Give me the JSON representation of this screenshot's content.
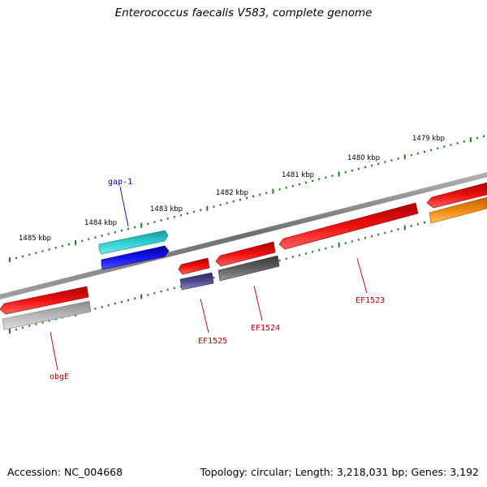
{
  "title": "Enterococcus faecalis V583, complete genome",
  "footer": {
    "accession": "Accession: NC_004668",
    "summary": "Topology: circular; Length: 3,218,031 bp; Genes: 3,192"
  },
  "scale": {
    "tick_labels": [
      "1485 kbp",
      "1484 kbp",
      "1483 kbp",
      "1482 kbp",
      "1481 kbp",
      "1480 kbp",
      "1479 kbp"
    ]
  },
  "genes": [
    {
      "name": "gap-1",
      "strand": "forward",
      "color": "#27c6c6",
      "labelled": true
    },
    {
      "name": "",
      "strand": "forward",
      "color": "#1010e6",
      "labelled": false
    },
    {
      "name": "obgE",
      "strand": "reverse",
      "color": "#ee1111",
      "labelled": true
    },
    {
      "name": "",
      "strand": "reverse",
      "color": "#b8b8b8",
      "labelled": false
    },
    {
      "name": "EF1525",
      "strand": "reverse",
      "color": "#ee1111",
      "labelled": true
    },
    {
      "name": "",
      "strand": "reverse",
      "color": "#4c4a8a",
      "labelled": false
    },
    {
      "name": "EF1524",
      "strand": "forward",
      "color": "#ee1111",
      "labelled": true
    },
    {
      "name": "",
      "strand": "forward",
      "color": "#5e5e5e",
      "labelled": false
    },
    {
      "name": "EF1523",
      "strand": "reverse",
      "color": "#ee1111",
      "labelled": true
    },
    {
      "name": "",
      "strand": "reverse",
      "color": "#ee1111",
      "labelled": false
    },
    {
      "name": "",
      "strand": "reverse",
      "color": "#f08a10",
      "labelled": false
    }
  ],
  "colors": {
    "backbone": "#8a8a8a",
    "tick": "#1f7a1f",
    "label_blue": "#0000aa",
    "label_red": "#b80000"
  }
}
